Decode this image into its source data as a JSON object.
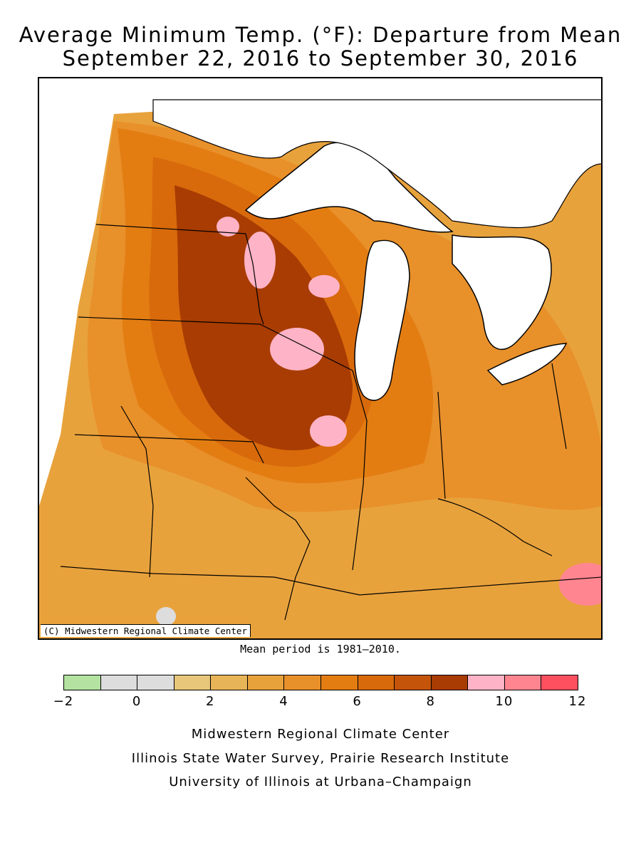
{
  "title": {
    "line1": "Average Minimum Temp. (°F): Departure from Mean",
    "line2": "September 22, 2016 to September 30, 2016"
  },
  "map": {
    "copyright": "(C) Midwestern Regional Climate Center",
    "mean_note": "Mean period is 1981–2010."
  },
  "legend": {
    "colors": [
      "#b3e2a1",
      "#dddddd",
      "#dddddd",
      "#e8c77a",
      "#e8b458",
      "#e8a23c",
      "#e8902a",
      "#e37d12",
      "#d86a0c",
      "#c4540a",
      "#a83c02",
      "#ffb3c6",
      "#ff8590",
      "#ff5060"
    ],
    "ticks": [
      "−2",
      "0",
      "2",
      "4",
      "6",
      "8",
      "10",
      "12"
    ]
  },
  "credits": {
    "line1": "Midwestern Regional Climate Center",
    "line2": "Illinois State Water Survey, Prairie Research Institute",
    "line3": "University of Illinois at Urbana–Champaign"
  }
}
